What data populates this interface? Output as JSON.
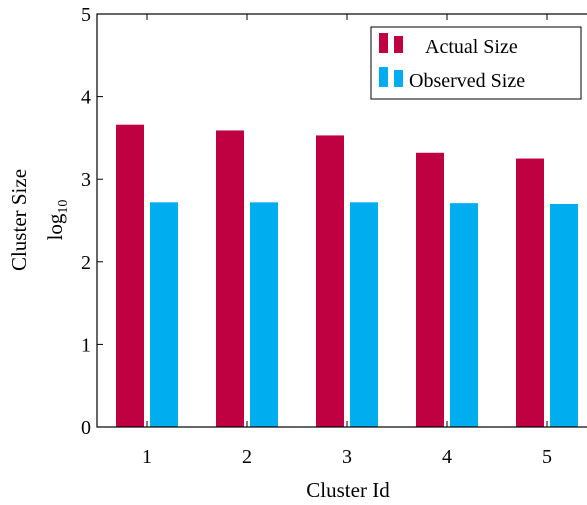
{
  "chart_data": {
    "type": "bar",
    "categories": [
      "1",
      "2",
      "3",
      "4",
      "5"
    ],
    "series": [
      {
        "name": "Actual Size",
        "color": "#bf0041",
        "values": [
          3.66,
          3.59,
          3.53,
          3.32,
          3.25
        ]
      },
      {
        "name": "Observed Size",
        "color": "#00aeef",
        "values": [
          2.72,
          2.72,
          2.72,
          2.71,
          2.7
        ]
      }
    ],
    "xlabel": "Cluster Id",
    "ylabel_line1": "Cluster Size",
    "ylabel_line2_base": "log",
    "ylabel_line2_sub": "10",
    "ylim": [
      0,
      5
    ],
    "yticks": [
      "0",
      "1",
      "2",
      "3",
      "4",
      "5"
    ],
    "grid": false,
    "legend_position": "top-right"
  }
}
